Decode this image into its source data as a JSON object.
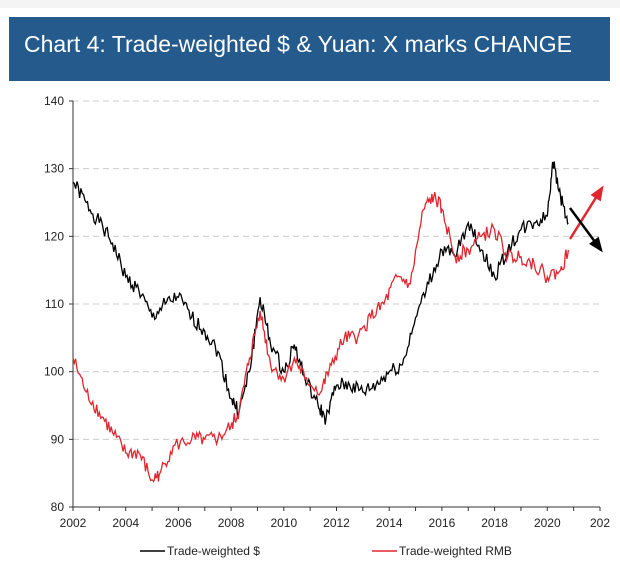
{
  "chart_data": {
    "type": "line",
    "title": "Chart 4: Trade-weighted $ & Yuan: X marks CHANGE",
    "xlabel": "",
    "ylabel": "",
    "xlim": [
      2002,
      2022
    ],
    "ylim": [
      80,
      140
    ],
    "x_ticks": [
      "2002",
      "2004",
      "2006",
      "2008",
      "2010",
      "2012",
      "2014",
      "2016",
      "2018",
      "2020",
      "202"
    ],
    "y_ticks": [
      "80",
      "90",
      "100",
      "110",
      "120",
      "130",
      "140"
    ],
    "grid": "horizontal dashed",
    "legend": "bottom",
    "series": [
      {
        "name": "Trade-weighted $",
        "color": "#000000",
        "x": [
          2002,
          2002.5,
          2003,
          2003.5,
          2004,
          2004.5,
          2005,
          2005.5,
          2006,
          2006.5,
          2007,
          2007.5,
          2008,
          2008.3,
          2008.7,
          2009.1,
          2009.5,
          2010,
          2010.4,
          2010.8,
          2011.3,
          2011.6,
          2012,
          2012.5,
          2013,
          2013.5,
          2014,
          2014.5,
          2015,
          2015.5,
          2016,
          2016.5,
          2017,
          2017.5,
          2018,
          2018.5,
          2019,
          2019.5,
          2020,
          2020.2,
          2020.5,
          2020.8
        ],
        "y": [
          128,
          125,
          122,
          119,
          114,
          112,
          108,
          110,
          111,
          108,
          106,
          103,
          96,
          94,
          100,
          111,
          104,
          100,
          104,
          99,
          95,
          93,
          98,
          98,
          97,
          98,
          100,
          101,
          108,
          113,
          118,
          117,
          122,
          118,
          114,
          118,
          121,
          122,
          123,
          131,
          126,
          122
        ]
      },
      {
        "name": "Trade-weighted RMB",
        "color": "#e0262f",
        "x": [
          2002,
          2002.5,
          2003,
          2003.5,
          2004,
          2004.5,
          2005,
          2005.3,
          2005.8,
          2006.5,
          2007,
          2007.5,
          2008,
          2008.3,
          2008.7,
          2009.1,
          2009.5,
          2010,
          2010.4,
          2010.8,
          2011.4,
          2011.8,
          2012.3,
          2012.8,
          2013.3,
          2013.8,
          2014.3,
          2014.8,
          2015.3,
          2015.7,
          2016,
          2016.5,
          2017,
          2017.5,
          2018,
          2018.5,
          2019,
          2019.5,
          2020,
          2020.5,
          2020.8
        ],
        "y": [
          102,
          97,
          94,
          91,
          88,
          88,
          84,
          85,
          89,
          90,
          90,
          90,
          92,
          94,
          102,
          109,
          101,
          99,
          102,
          99,
          97,
          101,
          105,
          105,
          108,
          110,
          114,
          113,
          124,
          126,
          124,
          117,
          118,
          120,
          121,
          117,
          117,
          116,
          114,
          115,
          118
        ]
      }
    ],
    "annotations": [
      {
        "type": "arrow",
        "direction": "up",
        "color": "#e0262f"
      },
      {
        "type": "arrow",
        "direction": "down",
        "color": "#000000"
      }
    ]
  }
}
